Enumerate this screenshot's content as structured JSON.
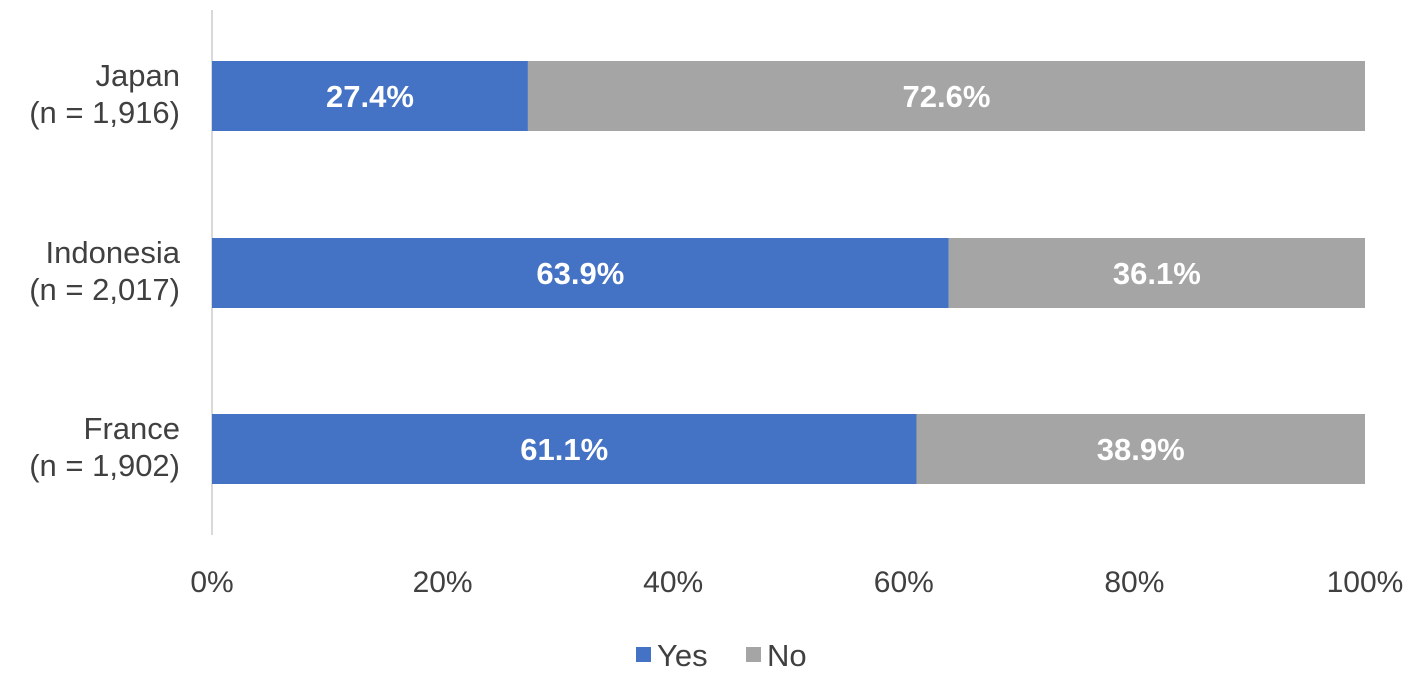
{
  "chart_data": {
    "type": "bar",
    "orientation": "horizontal",
    "stacked": true,
    "categories": [
      [
        "Japan",
        "(n = 1,916)"
      ],
      [
        "Indonesia",
        "(n = 2,017)"
      ],
      [
        "France",
        "(n = 1,902)"
      ]
    ],
    "series": [
      {
        "name": "Yes",
        "color": "#4472c4",
        "values": [
          27.4,
          63.9,
          61.1
        ],
        "labels": [
          "27.4%",
          "63.9%",
          "61.1%"
        ]
      },
      {
        "name": "No",
        "color": "#a5a5a5",
        "values": [
          72.6,
          36.1,
          38.9
        ],
        "labels": [
          "72.6%",
          "36.1%",
          "38.9%"
        ]
      }
    ],
    "xlim": [
      0,
      100
    ],
    "x_ticks": [
      "0%",
      "20%",
      "40%",
      "60%",
      "80%",
      "100%"
    ],
    "title": "",
    "xlabel": "",
    "ylabel": "",
    "grid": false,
    "legend": "bottom-center"
  }
}
